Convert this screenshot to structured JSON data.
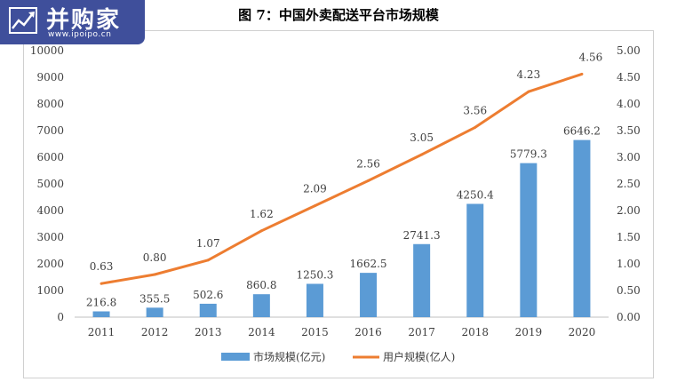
{
  "logo": {
    "brand": "并购家",
    "url": "www.ipoipo.cn"
  },
  "colors": {
    "bar": "#5b9bd5",
    "line": "#ed7d31",
    "logo_bg": "#3f4f9b"
  },
  "chart_data": {
    "type": "bar",
    "title": "图 7：中国外卖配送平台市场规模",
    "categories": [
      "2011",
      "2012",
      "2013",
      "2014",
      "2015",
      "2016",
      "2017",
      "2018",
      "2019",
      "2020"
    ],
    "series": [
      {
        "name": "市场规模(亿元)",
        "type": "bar",
        "axis": "left",
        "values": [
          216.8,
          355.5,
          502.6,
          860.8,
          1250.3,
          1662.5,
          2741.3,
          4250.4,
          5779.3,
          6646.2
        ],
        "labels": [
          "216.8",
          "355.5",
          "502.6",
          "860.8",
          "1250.3",
          "1662.5",
          "2741.3",
          "4250.4",
          "5779.3",
          "6646.2"
        ]
      },
      {
        "name": "用户规模(亿人)",
        "type": "line",
        "axis": "right",
        "values": [
          0.63,
          0.8,
          1.07,
          1.62,
          2.09,
          2.56,
          3.05,
          3.56,
          4.23,
          4.56
        ],
        "labels": [
          "0.63",
          "0.80",
          "1.07",
          "1.62",
          "2.09",
          "2.56",
          "3.05",
          "3.56",
          "4.23",
          "4.56"
        ]
      }
    ],
    "y_left": {
      "min": 0,
      "max": 10000,
      "ticks": [
        "0",
        "1000",
        "2000",
        "3000",
        "4000",
        "5000",
        "6000",
        "7000",
        "8000",
        "9000",
        "10000"
      ]
    },
    "y_right": {
      "min": 0,
      "max": 5,
      "ticks": [
        "0.00",
        "0.50",
        "1.00",
        "1.50",
        "2.00",
        "2.50",
        "3.00",
        "3.50",
        "4.00",
        "4.50",
        "5.00"
      ]
    },
    "grid": false,
    "legend_position": "bottom"
  }
}
